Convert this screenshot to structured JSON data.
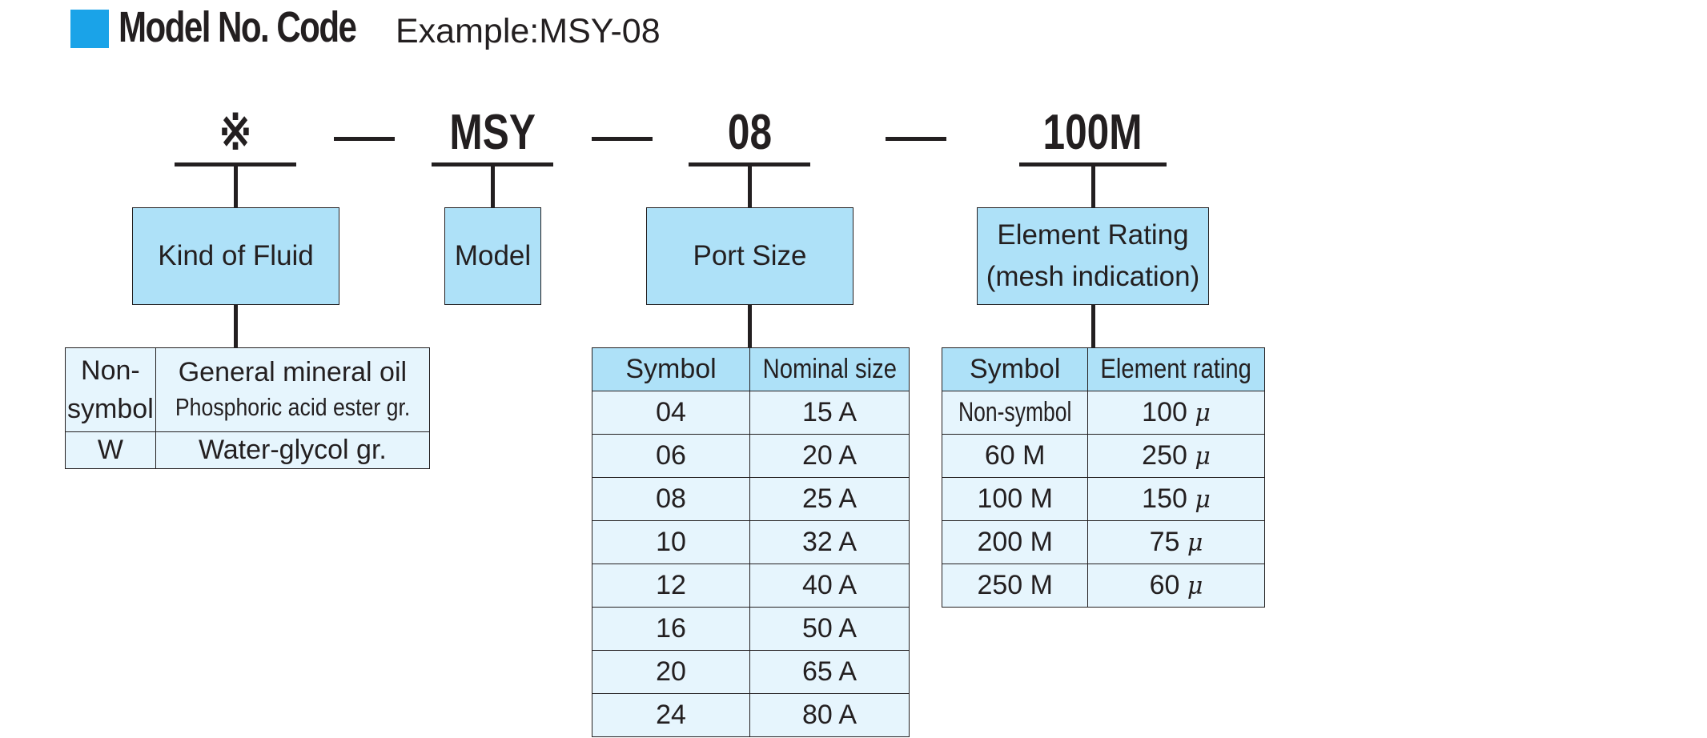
{
  "header": {
    "title": "Model No. Code",
    "example": "Example:MSY-08"
  },
  "code": {
    "fluid_symbol": "※",
    "model": "MSY",
    "port": "08",
    "element": "100M"
  },
  "boxes": {
    "kind_of_fluid": "Kind of Fluid",
    "model": "Model",
    "port_size": "Port Size",
    "element_rating_line1": "Element Rating",
    "element_rating_line2": "(mesh indication)"
  },
  "fluid_table": {
    "rows": [
      {
        "symbol_line1": "Non-",
        "symbol_line2": "symbol",
        "desc_line1": "General mineral oil",
        "desc_line2": "Phosphoric acid ester gr."
      },
      {
        "symbol": "W",
        "desc": "Water-glycol gr."
      }
    ]
  },
  "port_table": {
    "headers": [
      "Symbol",
      "Nominal size"
    ],
    "rows": [
      [
        "04",
        "15 A"
      ],
      [
        "06",
        "20 A"
      ],
      [
        "08",
        "25 A"
      ],
      [
        "10",
        "32 A"
      ],
      [
        "12",
        "40 A"
      ],
      [
        "16",
        "50 A"
      ],
      [
        "20",
        "65 A"
      ],
      [
        "24",
        "80 A"
      ]
    ]
  },
  "element_table": {
    "headers": [
      "Symbol",
      "Element rating"
    ],
    "unit": "μ",
    "rows": [
      [
        "Non-symbol",
        "100"
      ],
      [
        "60 M",
        "250"
      ],
      [
        "100 M",
        "150"
      ],
      [
        "200 M",
        "75"
      ],
      [
        "250 M",
        "60"
      ]
    ]
  },
  "colors": {
    "accent": "#1aa3e8",
    "box_fill": "#aee1f8",
    "cell_fill": "#e6f5fd",
    "line": "#231f20"
  }
}
